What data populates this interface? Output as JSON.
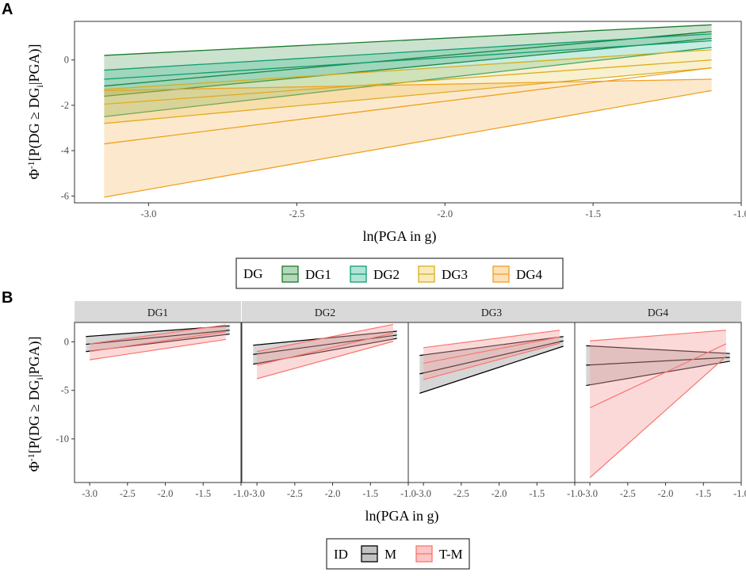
{
  "chart_data": [
    {
      "type": "line",
      "panel_label": "A",
      "xlabel": "ln(PGA in g)",
      "ylabel_prefix": "Φ",
      "ylabel_sup": "-1",
      "ylabel_main": "[P(DG ≥ DG",
      "ylabel_sub": "i",
      "ylabel_end": "|PGA)]",
      "xlim": [
        -3.25,
        -1.0
      ],
      "ylim": [
        -6.3,
        1.7
      ],
      "x_ticks": [
        -3.0,
        -2.5,
        -2.0,
        -1.5,
        -1.0
      ],
      "x_tick_labels": [
        "-3.0",
        "-2.5",
        "-2.0",
        "-1.5",
        "-1.0"
      ],
      "y_ticks": [
        -6,
        -4,
        -2,
        0
      ],
      "y_tick_labels": [
        "-6",
        "-4",
        "-2",
        "0"
      ],
      "x_range": [
        -3.15,
        -1.1
      ],
      "series": [
        {
          "name": "DG1",
          "line": [
            -1.15,
            1.25
          ],
          "lower": [
            -1.6,
            0.95
          ],
          "upper": [
            0.2,
            1.55
          ],
          "color": "#1a7a2a",
          "fill": "#2e8b3c"
        },
        {
          "name": "DG2",
          "line": [
            -0.85,
            0.85
          ],
          "lower": [
            -2.5,
            0.55
          ],
          "upper": [
            -0.45,
            1.15
          ],
          "color": "#0d9e72",
          "fill": "#1fb386"
        },
        {
          "name": "DG3",
          "line": [
            -1.95,
            0.0
          ],
          "lower": [
            -2.8,
            -0.35
          ],
          "upper": [
            -1.3,
            0.45
          ],
          "color": "#d9ae1b",
          "fill": "#e8c545"
        },
        {
          "name": "DG4",
          "line": [
            -3.7,
            -0.35
          ],
          "lower": [
            -6.05,
            -1.35
          ],
          "upper": [
            -1.35,
            -0.85
          ],
          "color": "#f0a020",
          "fill": "#f4a637"
        }
      ],
      "legend": {
        "title": "DG",
        "entries": [
          "DG1",
          "DG2",
          "DG3",
          "DG4"
        ],
        "position": "bottom"
      }
    },
    {
      "type": "line",
      "panel_label": "B",
      "xlabel": "ln(PGA in g)",
      "ylabel_prefix": "Φ",
      "ylabel_sup": "-1",
      "ylabel_main": "[P(DG ≥ DG",
      "ylabel_sub": "i",
      "ylabel_end": "|PGA)]",
      "xlim": [
        -3.2,
        -1.0
      ],
      "ylim": [
        -14.5,
        2.0
      ],
      "x_ticks": [
        -3.0,
        -2.5,
        -2.0,
        -1.5,
        -1.0
      ],
      "x_tick_labels": [
        "-3.0",
        "-2.5",
        "-2.0",
        "-1.5",
        "-1.0"
      ],
      "y_ticks": [
        -10,
        -5,
        0
      ],
      "y_tick_labels": [
        "-10",
        "-5",
        "0"
      ],
      "facets": [
        {
          "name": "DG1",
          "M": {
            "x": [
              -3.05,
              -1.15
            ],
            "line": [
              -0.25,
              1.2
            ],
            "lower": [
              -1.0,
              0.8
            ],
            "upper": [
              0.55,
              1.65
            ]
          },
          "T-M": {
            "x": [
              -3.0,
              -1.2
            ],
            "line": [
              -1.0,
              1.05
            ],
            "lower": [
              -1.85,
              0.25
            ],
            "upper": [
              -0.2,
              1.75
            ]
          }
        },
        {
          "name": "DG2",
          "M": {
            "x": [
              -3.05,
              -1.15
            ],
            "line": [
              -1.3,
              0.7
            ],
            "lower": [
              -2.3,
              0.35
            ],
            "upper": [
              -0.35,
              1.1
            ]
          },
          "T-M": {
            "x": [
              -3.0,
              -1.2
            ],
            "line": [
              -2.4,
              0.9
            ],
            "lower": [
              -3.8,
              0.05
            ],
            "upper": [
              -1.0,
              1.8
            ]
          }
        },
        {
          "name": "DG3",
          "M": {
            "x": [
              -3.05,
              -1.15
            ],
            "line": [
              -3.3,
              0.1
            ],
            "lower": [
              -5.3,
              -0.45
            ],
            "upper": [
              -1.4,
              0.55
            ]
          },
          "T-M": {
            "x": [
              -3.0,
              -1.2
            ],
            "line": [
              -2.2,
              0.5
            ],
            "lower": [
              -3.9,
              -0.15
            ],
            "upper": [
              -0.6,
              1.2
            ]
          }
        },
        {
          "name": "DG4",
          "M": {
            "x": [
              -3.05,
              -1.15
            ],
            "line": [
              -2.4,
              -1.6
            ],
            "lower": [
              -4.5,
              -2.0
            ],
            "upper": [
              -0.4,
              -1.2
            ]
          },
          "T-M": {
            "x": [
              -3.0,
              -1.2
            ],
            "line": [
              -6.8,
              -0.2
            ],
            "lower": [
              -14.0,
              -1.5
            ],
            "upper": [
              0.1,
              1.2
            ]
          }
        }
      ],
      "series_style": {
        "M": {
          "color": "#000000",
          "fill": "#999999"
        },
        "T-M": {
          "color": "#f8766d",
          "fill": "#f8a0a0"
        }
      },
      "legend": {
        "title": "ID",
        "entries": [
          "M",
          "T-M"
        ],
        "position": "bottom"
      }
    }
  ]
}
